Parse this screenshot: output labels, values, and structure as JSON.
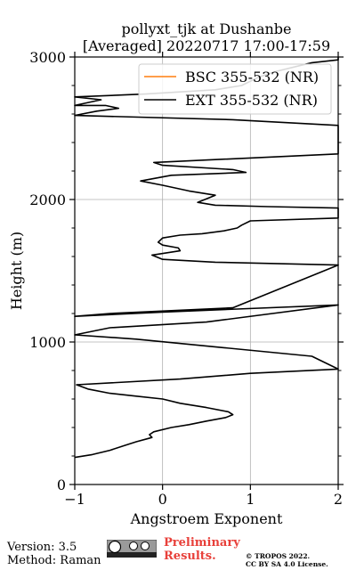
{
  "chart_data": {
    "type": "line",
    "title_line1": "pollyxt_tjk at Dushanbe",
    "title_line2": "[Averaged] 20220717 17:00-17:59",
    "xlabel": "Angstroem Exponent",
    "ylabel": "Height (m)",
    "xlim": [
      -1,
      2
    ],
    "ylim": [
      0,
      3000
    ],
    "xticks": [
      -1,
      0,
      1,
      2
    ],
    "xtick_labels": [
      "−1",
      "0",
      "1",
      "2"
    ],
    "yticks": [
      0,
      1000,
      2000,
      3000
    ],
    "ytick_labels": [
      "0",
      "1000",
      "2000",
      "3000"
    ],
    "grid": true,
    "legend_position": "top-right",
    "series": [
      {
        "name": "BSC 355-532 (NR)",
        "color": "#ff7f0e",
        "points": []
      },
      {
        "name": "EXT 355-532 (NR)",
        "color": "#000000",
        "points": [
          [
            -1.0,
            190
          ],
          [
            -0.8,
            210
          ],
          [
            -0.6,
            240
          ],
          [
            -0.45,
            270
          ],
          [
            -0.3,
            300
          ],
          [
            -0.18,
            320
          ],
          [
            -0.12,
            330
          ],
          [
            -0.15,
            350
          ],
          [
            -0.1,
            370
          ],
          [
            0.1,
            400
          ],
          [
            0.3,
            420
          ],
          [
            0.5,
            445
          ],
          [
            0.72,
            470
          ],
          [
            0.8,
            490
          ],
          [
            0.75,
            510
          ],
          [
            0.5,
            540
          ],
          [
            0.2,
            570
          ],
          [
            0.0,
            600
          ],
          [
            -0.3,
            620
          ],
          [
            -0.6,
            640
          ],
          [
            -0.85,
            670
          ],
          [
            -0.98,
            700
          ],
          [
            0.2,
            740
          ],
          [
            1.0,
            780
          ],
          [
            2.0,
            810
          ],
          [
            1.7,
            900
          ],
          [
            0.7,
            960
          ],
          [
            -0.3,
            1020
          ],
          [
            -1.0,
            1050
          ],
          [
            -0.6,
            1100
          ],
          [
            0.5,
            1140
          ],
          [
            2.0,
            1260
          ],
          [
            0.0,
            1210
          ],
          [
            -1.0,
            1180
          ],
          [
            -0.6,
            1200
          ],
          [
            0.8,
            1240
          ],
          [
            2.0,
            1540
          ],
          [
            0.6,
            1560
          ],
          [
            0.0,
            1580
          ],
          [
            -0.12,
            1610
          ],
          [
            0.2,
            1640
          ],
          [
            0.18,
            1660
          ],
          [
            0.0,
            1680
          ],
          [
            -0.05,
            1700
          ],
          [
            0.0,
            1730
          ],
          [
            0.2,
            1750
          ],
          [
            0.45,
            1760
          ],
          [
            0.7,
            1780
          ],
          [
            0.85,
            1800
          ],
          [
            0.9,
            1820
          ],
          [
            1.0,
            1850
          ],
          [
            2.0,
            1870
          ],
          [
            2.0,
            1940
          ],
          [
            1.2,
            1950
          ],
          [
            0.6,
            1960
          ],
          [
            0.4,
            1980
          ],
          [
            0.6,
            2030
          ],
          [
            0.3,
            2060
          ],
          [
            0.0,
            2100
          ],
          [
            -0.25,
            2130
          ],
          [
            0.1,
            2170
          ],
          [
            0.95,
            2190
          ],
          [
            0.8,
            2210
          ],
          [
            0.0,
            2240
          ],
          [
            -0.1,
            2260
          ],
          [
            2.0,
            2320
          ],
          [
            2.0,
            2520
          ],
          [
            0.8,
            2560
          ],
          [
            -1.0,
            2590
          ],
          [
            -0.75,
            2620
          ],
          [
            -0.5,
            2640
          ],
          [
            -0.65,
            2660
          ],
          [
            -1.0,
            2660
          ],
          [
            -0.7,
            2700
          ],
          [
            -1.0,
            2720
          ],
          [
            -0.2,
            2740
          ],
          [
            0.6,
            2770
          ],
          [
            0.9,
            2800
          ],
          [
            1.0,
            2830
          ],
          [
            1.1,
            2860
          ],
          [
            1.3,
            2900
          ],
          [
            1.5,
            2930
          ],
          [
            1.7,
            2960
          ],
          [
            2.0,
            2980
          ],
          [
            2.0,
            3000
          ]
        ]
      }
    ]
  },
  "footer": {
    "version": "Version: 3.5",
    "method": "Method: Raman",
    "preliminary_line1": "Preliminary",
    "preliminary_line2": "Results.",
    "copyright_line1": "© TROPOS 2022.",
    "copyright_line2": "CC BY SA 4.0 License."
  }
}
